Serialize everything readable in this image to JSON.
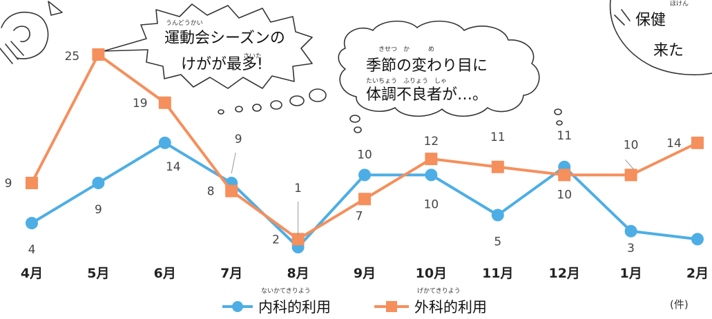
{
  "chart_data": {
    "type": "line",
    "categories": [
      "4月",
      "5月",
      "6月",
      "7月",
      "8月",
      "9月",
      "10月",
      "11月",
      "12月",
      "1月",
      "2月"
    ],
    "series": [
      {
        "name": "内科的利用",
        "color": "#4daee5",
        "marker": "circle",
        "values": [
          4,
          9,
          14,
          9,
          1,
          10,
          10,
          5,
          11,
          3,
          2
        ]
      },
      {
        "name": "外科的利用",
        "color": "#f58f5c",
        "marker": "square",
        "values": [
          9,
          25,
          19,
          8,
          2,
          7,
          12,
          11,
          10,
          10,
          14
        ]
      }
    ],
    "unit": "(件)",
    "grid": false,
    "legend": "bottom-center"
  },
  "annotations": {
    "bubble1": {
      "ruby": "うんどうかい",
      "text1": "運動会シーズンの",
      "ruby2": "さいた",
      "text2": "けがが最多!"
    },
    "bubble2": {
      "ruby1": "きせつ　か　　　め",
      "text1": "季節の変わり目に",
      "ruby2": "たいちょう　ふりょう　しゃ",
      "text2": "体調不良者が…。"
    },
    "bubble3": {
      "ruby": "ほけん",
      "text1": "保健",
      "text2": "来た"
    }
  },
  "legend_ruby": {
    "internal": "ないかてきりよう",
    "external": "げかてきりよう"
  }
}
